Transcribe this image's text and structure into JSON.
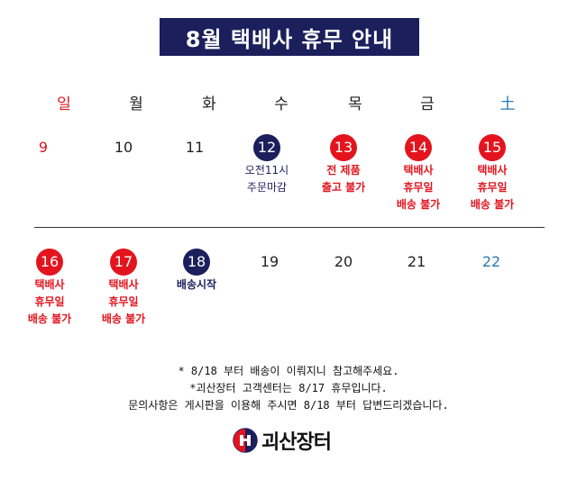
{
  "title": "8월 택배사 휴무 안내",
  "weekdays": [
    "일",
    "월",
    "화",
    "수",
    "목",
    "금",
    "土"
  ],
  "colors": {
    "navy": "#1b1f5c",
    "red": "#e3141e",
    "sunday": "#e3141e",
    "saturday": "#2a7ab5"
  },
  "week1": [
    {
      "day": "9"
    },
    {
      "day": "10"
    },
    {
      "day": "11"
    },
    {
      "day": "12",
      "note1": "오전11시",
      "note2": "주문마감"
    },
    {
      "day": "13",
      "note1": "전 제품",
      "note2": "출고 불가"
    },
    {
      "day": "14",
      "note1": "택배사",
      "note2": "휴무일",
      "note3": "배송 불가"
    },
    {
      "day": "15",
      "note1": "택배사",
      "note2": "휴무일",
      "note3": "배송 불가"
    }
  ],
  "week2": [
    {
      "day": "16",
      "note1": "택배사",
      "note2": "휴무일",
      "note3": "배송 불가"
    },
    {
      "day": "17",
      "note1": "택배사",
      "note2": "휴무일",
      "note3": "배송 불가"
    },
    {
      "day": "18",
      "note1": "배송시작"
    },
    {
      "day": "19"
    },
    {
      "day": "20"
    },
    {
      "day": "21"
    },
    {
      "day": "22"
    }
  ],
  "footer": {
    "line1": "* 8/18 부터 배송이 이뤄지니 참고해주세요.",
    "line2": "*괴산장터 고객센터는 8/17 휴무입니다.",
    "line3": "문의사항은 게시판을 이용해 주시면 8/18 부터 답변드리겠습니다."
  },
  "logo": {
    "text": "괴산장터",
    "icon": "market-logo-icon"
  }
}
